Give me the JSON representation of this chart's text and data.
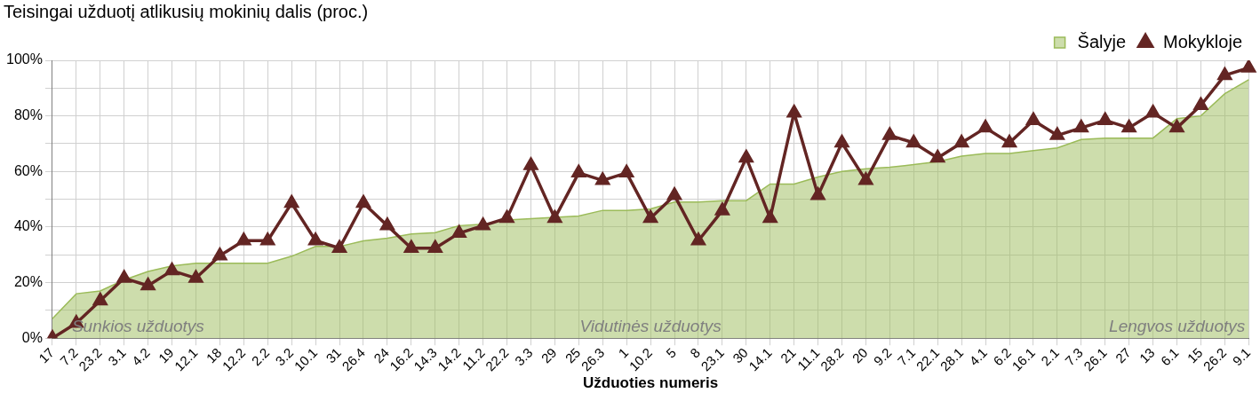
{
  "chart_data": {
    "type": "area",
    "title": "Teisingai užduotį atlikusių mokinių dalis (proc.)",
    "xlabel": "Užduoties numeris",
    "categories": [
      "17",
      "7.2",
      "23.2",
      "3.1",
      "4.2",
      "19",
      "12.1",
      "18",
      "12.2",
      "2.2",
      "3.2",
      "10.1",
      "31",
      "26.4",
      "24",
      "16.2",
      "14.3",
      "14.2",
      "11.2",
      "22.2",
      "3.3",
      "29",
      "25",
      "26.3",
      "1",
      "10.2",
      "5",
      "8",
      "23.1",
      "30",
      "14.1",
      "21",
      "11.1",
      "28.2",
      "20",
      "9.2",
      "7.1",
      "22.1",
      "28.1",
      "4.1",
      "6.2",
      "16.1",
      "2.1",
      "7.3",
      "26.1",
      "27",
      "13",
      "6.1",
      "15",
      "26.2",
      "9.1"
    ],
    "series": [
      {
        "name": "Šalyje",
        "color": "#9bbb59",
        "values": [
          7,
          16,
          17,
          21,
          24,
          26,
          27,
          27,
          27,
          27,
          29.5,
          33,
          33,
          35,
          36,
          37.5,
          38,
          40.5,
          41,
          42.5,
          43,
          43.5,
          44,
          46,
          46,
          46.5,
          49,
          49,
          49.5,
          49.5,
          55.5,
          55.5,
          58,
          60,
          61,
          61.5,
          62.5,
          63.5,
          65.5,
          66.5,
          66.5,
          67.5,
          68.5,
          71.5,
          72,
          72,
          72,
          79,
          80,
          88,
          93
        ]
      },
      {
        "name": "Mokykloje",
        "type": "line",
        "color": "#632523",
        "marker": "triangle",
        "values": [
          0,
          5.4,
          13.5,
          21.6,
          18.9,
          24.3,
          21.6,
          29.7,
          35.1,
          35.1,
          48.6,
          35.1,
          32.4,
          48.6,
          40.5,
          32.4,
          32.4,
          37.8,
          40.5,
          43.2,
          62.2,
          43.2,
          59.5,
          56.8,
          59.5,
          43.2,
          51.4,
          35.1,
          45.9,
          64.9,
          43.2,
          81.1,
          51.4,
          70.3,
          56.8,
          73,
          70.3,
          64.9,
          70.3,
          75.7,
          70.3,
          78.4,
          73,
          75.7,
          78.4,
          75.7,
          81.1,
          75.7,
          83.8,
          94.6,
          97.3
        ]
      }
    ],
    "ylim": [
      0,
      100
    ],
    "yticks": [
      {
        "value": 0,
        "label": "0%"
      },
      {
        "value": 10,
        "label": null
      },
      {
        "value": 20,
        "label": "20%"
      },
      {
        "value": 30,
        "label": null
      },
      {
        "value": 40,
        "label": "40%"
      },
      {
        "value": 50,
        "label": null
      },
      {
        "value": 60,
        "label": "60%"
      },
      {
        "value": 70,
        "label": null
      },
      {
        "value": 80,
        "label": "80%"
      },
      {
        "value": 90,
        "label": null
      },
      {
        "value": 100,
        "label": "100%"
      }
    ],
    "grid": true,
    "legend": "top right",
    "annotations": [
      "Sunkios užduotys",
      "Vidutinės užduotys",
      "Lengvos užduotys"
    ]
  }
}
